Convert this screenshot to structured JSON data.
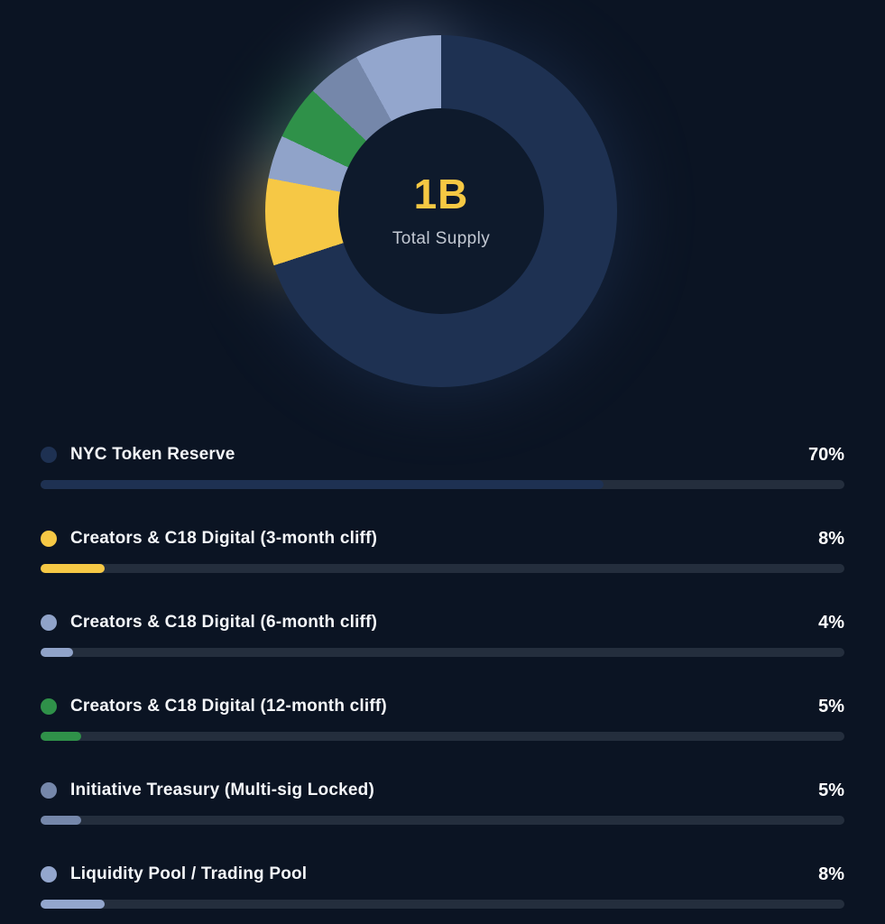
{
  "page": {
    "background_color": "#0b1423"
  },
  "chart_data": {
    "type": "pie",
    "donut": true,
    "start_angle_deg": 0,
    "direction": "clockwise",
    "center_value": "1B",
    "center_label": "Total Supply",
    "legend_position": "bottom",
    "series": [
      {
        "label": "NYC Token Reserve",
        "value": 70,
        "percent_text": "70%",
        "color": "#1e3152"
      },
      {
        "label": "Creators & C18 Digital (3-month cliff)",
        "value": 8,
        "percent_text": "8%",
        "color": "#f6c845"
      },
      {
        "label": "Creators & C18 Digital (6-month cliff)",
        "value": 4,
        "percent_text": "4%",
        "color": "#90a3c9"
      },
      {
        "label": "Creators & C18 Digital (12-month cliff)",
        "value": 5,
        "percent_text": "5%",
        "color": "#2f9149"
      },
      {
        "label": "Initiative Treasury (Multi-sig Locked)",
        "value": 5,
        "percent_text": "5%",
        "color": "#7587aa"
      },
      {
        "label": "Liquidity Pool / Trading Pool",
        "value": 8,
        "percent_text": "8%",
        "color": "#93a6cd"
      }
    ],
    "colors": {
      "hole": "#0e1a2c",
      "track": "#242e3d",
      "center_value": "#f5c843",
      "center_label": "#c3c9d3",
      "label_text": "#f4f6f9",
      "percent_text": "#ffffff"
    }
  }
}
